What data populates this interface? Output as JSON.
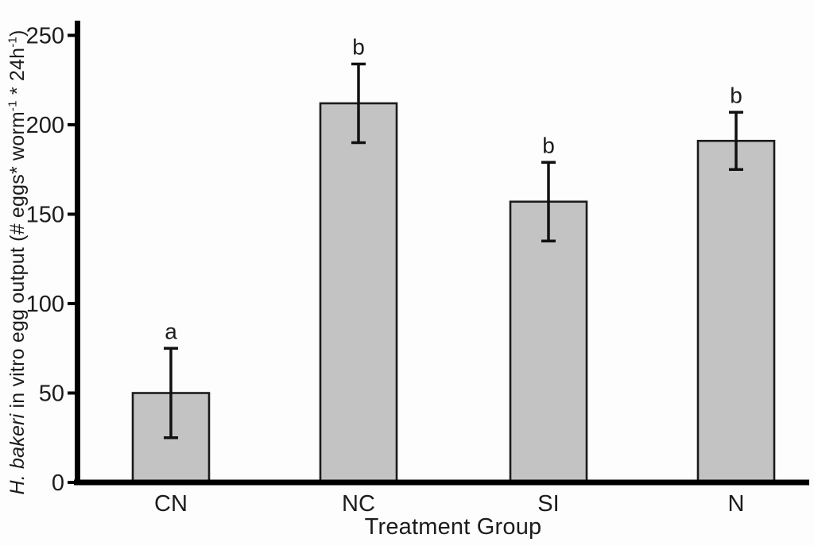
{
  "figure": {
    "background": "#fdfdfd"
  },
  "chart_data": {
    "type": "bar",
    "title": "",
    "categories": [
      "CN",
      "NC",
      "SI",
      "N"
    ],
    "values": [
      50,
      212,
      157,
      191
    ],
    "error_bars": [
      25,
      22,
      22,
      16
    ],
    "sig_letters": [
      "a",
      "b",
      "b",
      "b"
    ],
    "xlabel": "Treatment Group",
    "ylabel": "H. bakeri in vitro egg output (# eggs* worm-1 * 24h-1)",
    "ylabel_parts": [
      {
        "text": "H. bakeri",
        "style": "italic"
      },
      {
        "text": " in vitro egg output (# eggs*  worm",
        "style": "normal"
      },
      {
        "text": "-1",
        "style": "sup"
      },
      {
        "text": " * 24h",
        "style": "normal"
      },
      {
        "text": "-1",
        "style": "sup"
      },
      {
        "text": ")",
        "style": "normal"
      }
    ],
    "ylim": [
      0,
      258
    ],
    "yticks": [
      0,
      50,
      100,
      150,
      200,
      250
    ],
    "grid": false,
    "legend": null,
    "colors": {
      "bar_fill": "#c3c3c3",
      "bar_edge": "#1b1b1b",
      "axis": "#000000",
      "error_bar": "#111111",
      "text": "#1c1c1c"
    }
  }
}
